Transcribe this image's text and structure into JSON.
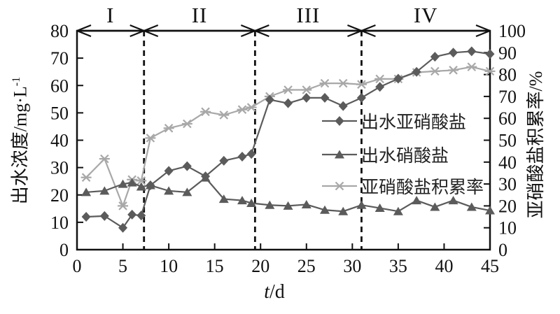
{
  "colors": {
    "axis": "#111111",
    "dark_series": "#5b5b5b",
    "light_series": "#a8a8a8",
    "background": "#ffffff",
    "dashed_line": "#111111"
  },
  "chart_data": {
    "type": "line",
    "title": "",
    "x": [
      1,
      3,
      5,
      6,
      7,
      8,
      10,
      12,
      14,
      16,
      18,
      19,
      21,
      23,
      25,
      27,
      29,
      31,
      33,
      35,
      37,
      39,
      41,
      43,
      45
    ],
    "series": [
      {
        "name": "出水亚硝酸盐",
        "axis": "left",
        "marker": "diamond",
        "color": "#5b5b5b",
        "values": [
          12,
          12.3,
          8,
          12.8,
          12.5,
          23.5,
          28.8,
          30.5,
          26.8,
          32.5,
          34,
          35,
          54.8,
          53.5,
          55.5,
          55.5,
          52.5,
          55.5,
          59.5,
          62.5,
          65,
          70.5,
          72,
          72.5,
          71.5
        ]
      },
      {
        "name": "出水硝酸盐",
        "axis": "left",
        "marker": "triangle",
        "color": "#5b5b5b",
        "values": [
          21,
          21.5,
          24,
          24.5,
          23,
          23.5,
          21.5,
          21,
          26.3,
          18.5,
          18,
          17,
          16.3,
          16,
          16.5,
          14.5,
          14,
          16.3,
          15.2,
          14,
          18,
          15.6,
          18,
          15.6,
          14.3
        ]
      },
      {
        "name": "亚硝酸盐积累率",
        "axis": "right",
        "marker": "star",
        "color": "#a8a8a8",
        "values": [
          33,
          41.5,
          20,
          32,
          31.5,
          51,
          55.5,
          57.5,
          63,
          61.5,
          64,
          65,
          70,
          73,
          73,
          76,
          76,
          75.5,
          78,
          78,
          81,
          81.5,
          82,
          83.5,
          81.5
        ]
      }
    ],
    "xlim": [
      0,
      45
    ],
    "ylim_left": [
      0,
      80
    ],
    "ylim_right": [
      0,
      100
    ],
    "xticks": [
      0,
      5,
      10,
      15,
      20,
      25,
      30,
      35,
      40,
      45
    ],
    "yticks_left": [
      0,
      10,
      20,
      30,
      40,
      50,
      60,
      70,
      80
    ],
    "yticks_right": [
      0,
      10,
      20,
      30,
      40,
      50,
      60,
      70,
      80,
      90,
      100
    ],
    "xlabel": "t/d",
    "xlabel_variable": "t",
    "xlabel_unit": "/d",
    "ylabel_left": "出水浓度/mg·L-1",
    "ylabel_left_main": "出水浓度/mg·L",
    "ylabel_left_sup": "-1",
    "ylabel_right": "亚硝酸盐积累率/%",
    "phases": {
      "labels": [
        "I",
        "II",
        "III",
        "IV"
      ],
      "boundaries": [
        7.3,
        19.4,
        31
      ]
    },
    "grid": false,
    "legend_position": "inside-right"
  },
  "legend": [
    {
      "label": "出水亚硝酸盐",
      "marker": "diamond",
      "color": "#5b5b5b"
    },
    {
      "label": "出水硝酸盐",
      "marker": "triangle",
      "color": "#5b5b5b"
    },
    {
      "label": "亚硝酸盐积累率",
      "marker": "star",
      "color": "#a8a8a8"
    }
  ]
}
